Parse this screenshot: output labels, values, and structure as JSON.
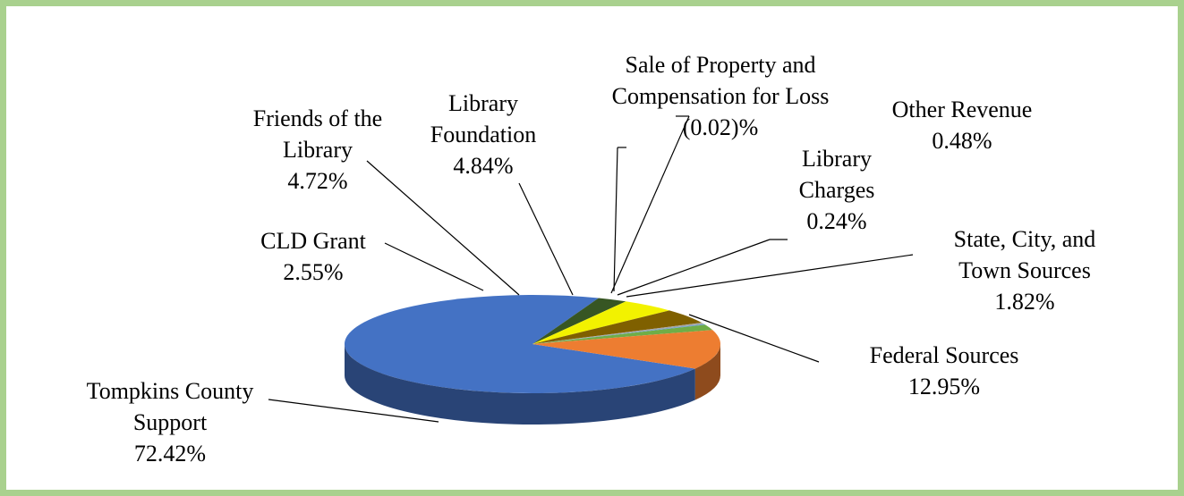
{
  "chart_data": {
    "type": "pie",
    "categories": [
      "Tompkins County Support",
      "CLD Grant",
      "Friends of the Library",
      "Library Foundation",
      "Sale of Property and Compensation for Loss",
      "Other Revenue",
      "Library Charges",
      "State, City, and Town Sources",
      "Federal Sources"
    ],
    "values": [
      72.42,
      2.55,
      4.72,
      4.84,
      -0.02,
      0.48,
      0.24,
      1.82,
      12.95
    ],
    "value_labels": [
      "72.42%",
      "2.55%",
      "4.72%",
      "4.84%",
      "(0.02)%",
      "0.48%",
      "0.24%",
      "1.82%",
      "12.95%"
    ],
    "colors": [
      "#4472c4",
      "#375623",
      "#f2f200",
      "#7f6000",
      "#bf9000",
      "#a5a5a5",
      "#5b9bd5",
      "#70ad47",
      "#ed7d31"
    ]
  }
}
